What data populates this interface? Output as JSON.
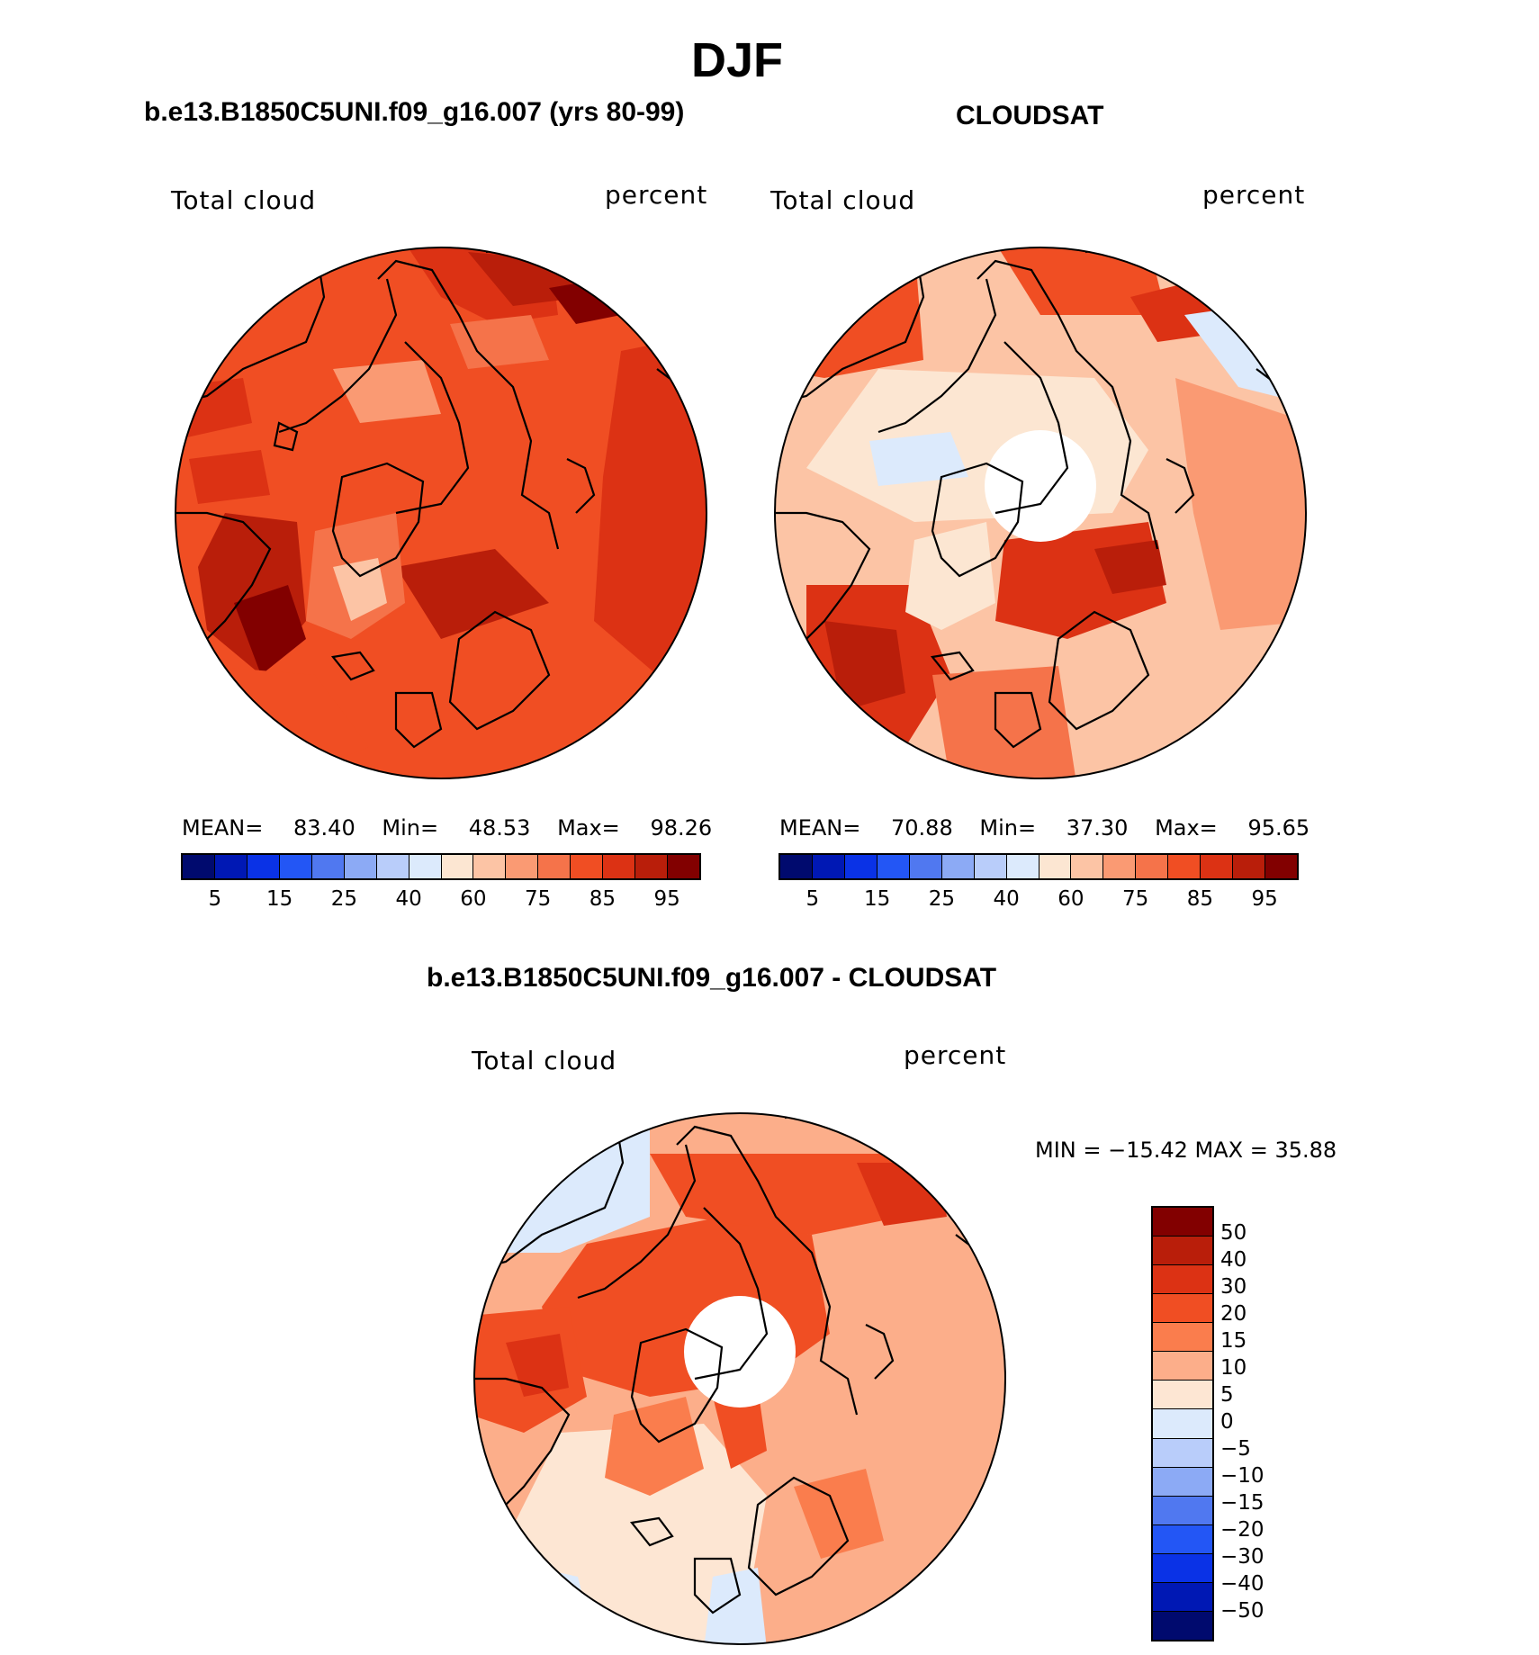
{
  "title": "DJF",
  "palette": {
    "abs": [
      "#000a6e",
      "#0018b4",
      "#0a32e6",
      "#2356f5",
      "#5078f0",
      "#8caaf5",
      "#b9cdfa",
      "#dceafc",
      "#fce6d2",
      "#fcc4a5",
      "#fa9a73",
      "#f5734a",
      "#f04e23",
      "#dc3214",
      "#b91e0a",
      "#820000"
    ],
    "diff": [
      "#820000",
      "#b91e0a",
      "#dc3214",
      "#f04e23",
      "#fa7d4d",
      "#fcae8a",
      "#fde6d3",
      "#dceafc",
      "#b9cdfa",
      "#8caaf5",
      "#5078f0",
      "#2356f5",
      "#0a32e6",
      "#0018b4",
      "#000a6e"
    ],
    "land_line": "#000000"
  },
  "panels": [
    {
      "title": "b.e13.B1850C5UNI.f09_g16.007 (yrs 80-99)",
      "left_label": "Total cloud",
      "right_label": "percent",
      "mean_label": "MEAN=",
      "mean": "83.40",
      "min_label": "Min=",
      "min": "48.53",
      "max_label": "Max=",
      "max": "98.26",
      "ticks": [
        "5",
        "15",
        "25",
        "40",
        "60",
        "75",
        "85",
        "95"
      ]
    },
    {
      "title": "CLOUDSAT",
      "left_label": "Total cloud",
      "right_label": "percent",
      "mean_label": "MEAN=",
      "mean": "70.88",
      "min_label": "Min=",
      "min": "37.30",
      "max_label": "Max=",
      "max": "95.65",
      "ticks": [
        "5",
        "15",
        "25",
        "40",
        "60",
        "75",
        "85",
        "95"
      ]
    }
  ],
  "diff_panel": {
    "title": "b.e13.B1850C5UNI.f09_g16.007 - CLOUDSAT",
    "left_label": "Total cloud",
    "right_label": "percent",
    "minmax": "MIN = −15.42 MAX =   35.88",
    "ticks": [
      "50",
      "40",
      "30",
      "20",
      "15",
      "10",
      "5",
      "0",
      "−5",
      "−10",
      "−15",
      "−20",
      "−30",
      "−40",
      "−50"
    ]
  }
}
